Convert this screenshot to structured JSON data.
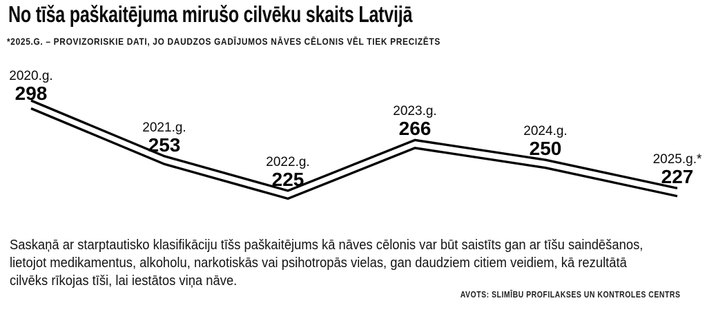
{
  "header": {
    "title": "No tīša paškaitējuma mirušo cilvēku skaits Latvijā",
    "footnote": "*2025.G. – PROVIZORISKIE DATI, JO DAUDZOS GADĪJUMOS NĀVES CĒLONIS VĒL TIEK PRECIZĒTS"
  },
  "chart_data": {
    "type": "line",
    "title": "No tīša paškaitējuma mirušo cilvēku skaits Latvijā",
    "categories": [
      "2020.g.",
      "2021.g.",
      "2022.g.",
      "2023.g.",
      "2024.g.",
      "2025.g.*"
    ],
    "values": [
      298,
      253,
      225,
      266,
      250,
      227
    ],
    "data_labels": true,
    "line_color": "#000000",
    "line_style": "double-parallel-line",
    "axes_visible": false,
    "grid": false,
    "legend": "none"
  },
  "body": {
    "lines": [
      "Saskaņā ar starptautisko klasifikāciju tīšs paškaitējums kā nāves cēlonis var būt saistīts gan ar tīšu saindēšanos,",
      "lietojot medikamentus, alkoholu, narkotiskās vai psihotropās vielas, gan daudziem citiem veidiem, kā rezultātā",
      "cilvēks rīkojas tīši, lai iestātos viņa nāve."
    ]
  },
  "source": {
    "label": "AVOTS: SLIMĪBU PROFILAKSES UN KONTROLES CENTRS"
  }
}
